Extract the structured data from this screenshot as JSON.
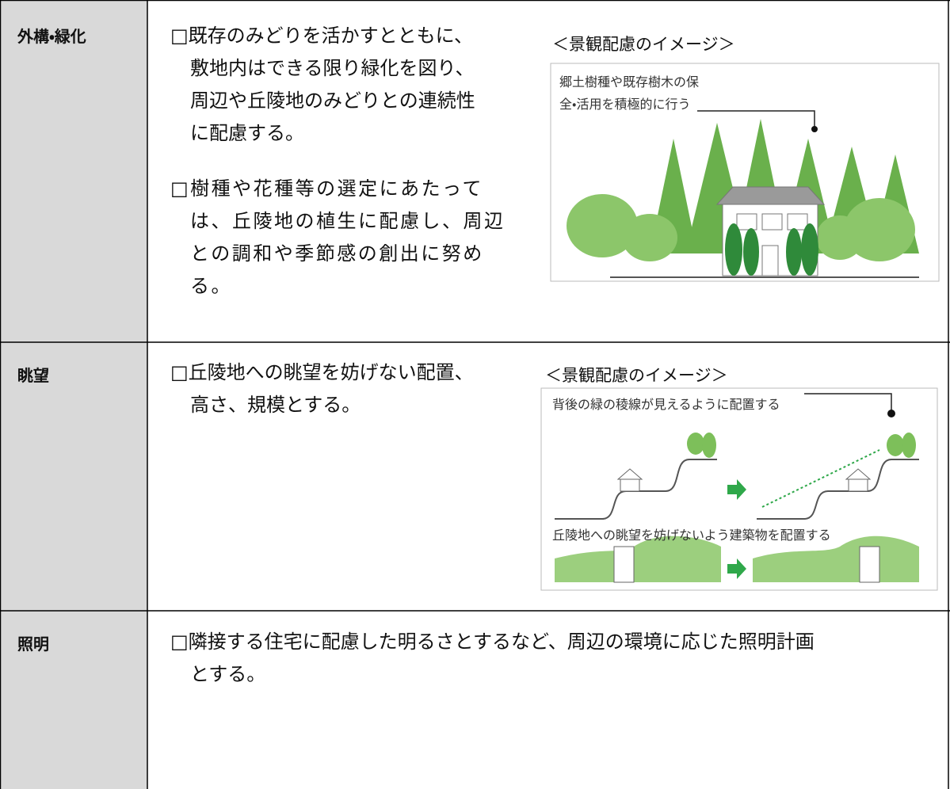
{
  "table": {
    "rows": [
      {
        "heading": "外構・緑化",
        "items": [
          {
            "lines": [
              "□既存のみどりを活かすとともに、",
              "敷地内はできる限り緑化を図り、",
              "周辺や丘陵地のみどりとの連続性",
              "に配慮する。"
            ]
          },
          {
            "lines": [
              "□樹種や花種等の選定にあたって",
              "は、丘陵地の植生に配慮し、周辺",
              "との調和や季節感の創出に努め",
              "る。"
            ]
          }
        ],
        "figure": {
          "caption": "＜景観配慮のイメージ＞",
          "labels": [
            "郷土樹種や既存樹木の保",
            "全・活用を積極的に行う"
          ]
        }
      },
      {
        "heading": "眺望",
        "items": [
          {
            "lines": [
              "□丘陵地への眺望を妨げない配置、",
              "高さ、規模とする。"
            ]
          }
        ],
        "figure": {
          "caption": "＜景観配慮のイメージ＞",
          "labels": [
            "背後の緑の稜線が見えるように配置する",
            "丘陵地への眺望を妨げないよう建築物を配置する"
          ]
        }
      },
      {
        "heading": "照明",
        "items": [
          {
            "lines": [
              "□隣接する住宅に配慮した明るさとするなど、周辺の環境に応じた照明計画",
              "とする。"
            ]
          }
        ]
      }
    ]
  }
}
